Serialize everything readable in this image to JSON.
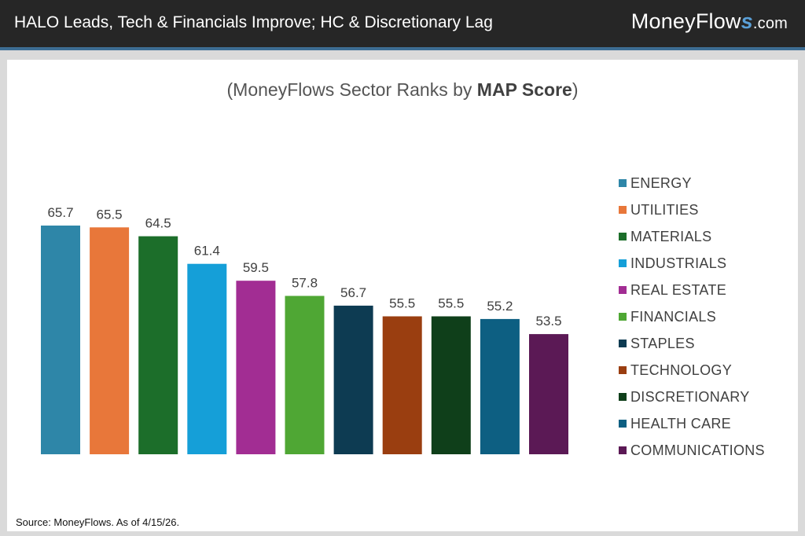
{
  "header": {
    "headline": "HALO Leads, Tech & Financials Improve; HC & Discretionary Lag",
    "brand_prefix": "MoneyFlow",
    "brand_s": "s",
    "brand_suffix": ".com"
  },
  "title_prefix": "(MoneyFlows Sector Ranks by ",
  "title_bold": "MAP Score",
  "title_suffix": ")",
  "source": "Source: MoneyFlows. As of 4/15/26.",
  "chart_data": {
    "type": "bar",
    "categories": [
      "ENERGY",
      "UTILITIES",
      "MATERIALS",
      "INDUSTRIALS",
      "REAL ESTATE",
      "FINANCIALS",
      "STAPLES",
      "TECHNOLOGY",
      "DISCRETIONARY",
      "HEALTH CARE",
      "COMMUNICATIONS"
    ],
    "values": [
      65.7,
      65.5,
      64.5,
      61.4,
      59.5,
      57.8,
      56.7,
      55.5,
      55.5,
      55.2,
      53.5
    ],
    "colors": [
      "#2e86a8",
      "#e8773a",
      "#1c6e2a",
      "#159fd8",
      "#a22d93",
      "#4fa734",
      "#0d3b52",
      "#9a3e10",
      "#0f3f1a",
      "#0d5f82",
      "#5b1955"
    ],
    "title": "(MoneyFlows Sector Ranks by MAP Score)",
    "xlabel": "",
    "ylabel": "",
    "legend_position": "right",
    "grid": false
  }
}
